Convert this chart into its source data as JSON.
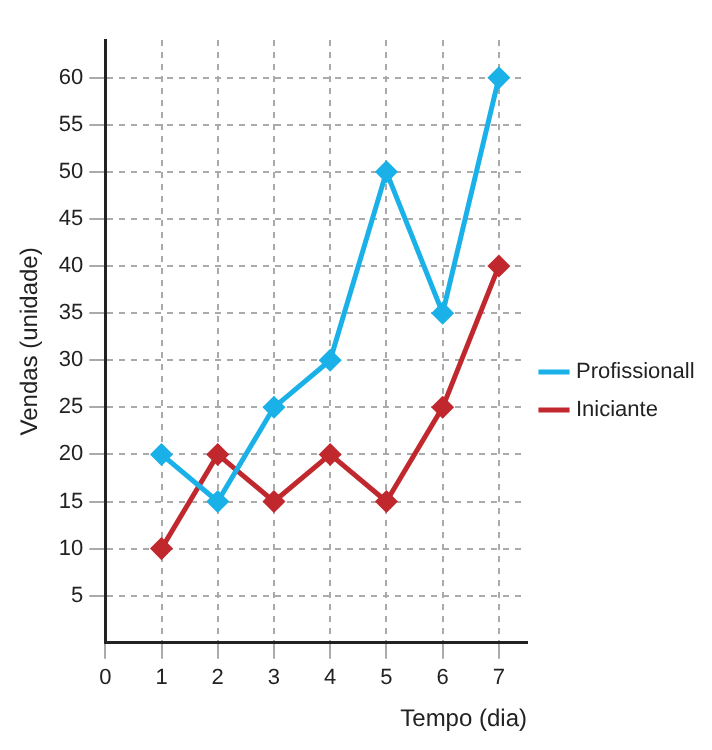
{
  "chart_data": {
    "type": "line",
    "xlabel": "Tempo (dia)",
    "ylabel": "Vendas (unidade)",
    "x": [
      1,
      2,
      3,
      4,
      5,
      6,
      7
    ],
    "series": [
      {
        "name": "Profissionall",
        "color": "#1ab0e8",
        "values": [
          20,
          15,
          25,
          30,
          50,
          35,
          60
        ]
      },
      {
        "name": "Iniciante",
        "color": "#c0282d",
        "values": [
          10,
          20,
          15,
          20,
          15,
          25,
          40
        ]
      }
    ],
    "xlim": [
      0,
      7.5
    ],
    "xticks": [
      0,
      1,
      2,
      3,
      4,
      5,
      6,
      7
    ],
    "ylim": [
      0,
      64
    ],
    "yticks": [
      5,
      10,
      15,
      20,
      25,
      30,
      35,
      40,
      45,
      50,
      55,
      60
    ],
    "grid": true,
    "legend": "right",
    "marker": "diamond",
    "line_style": "solid"
  }
}
